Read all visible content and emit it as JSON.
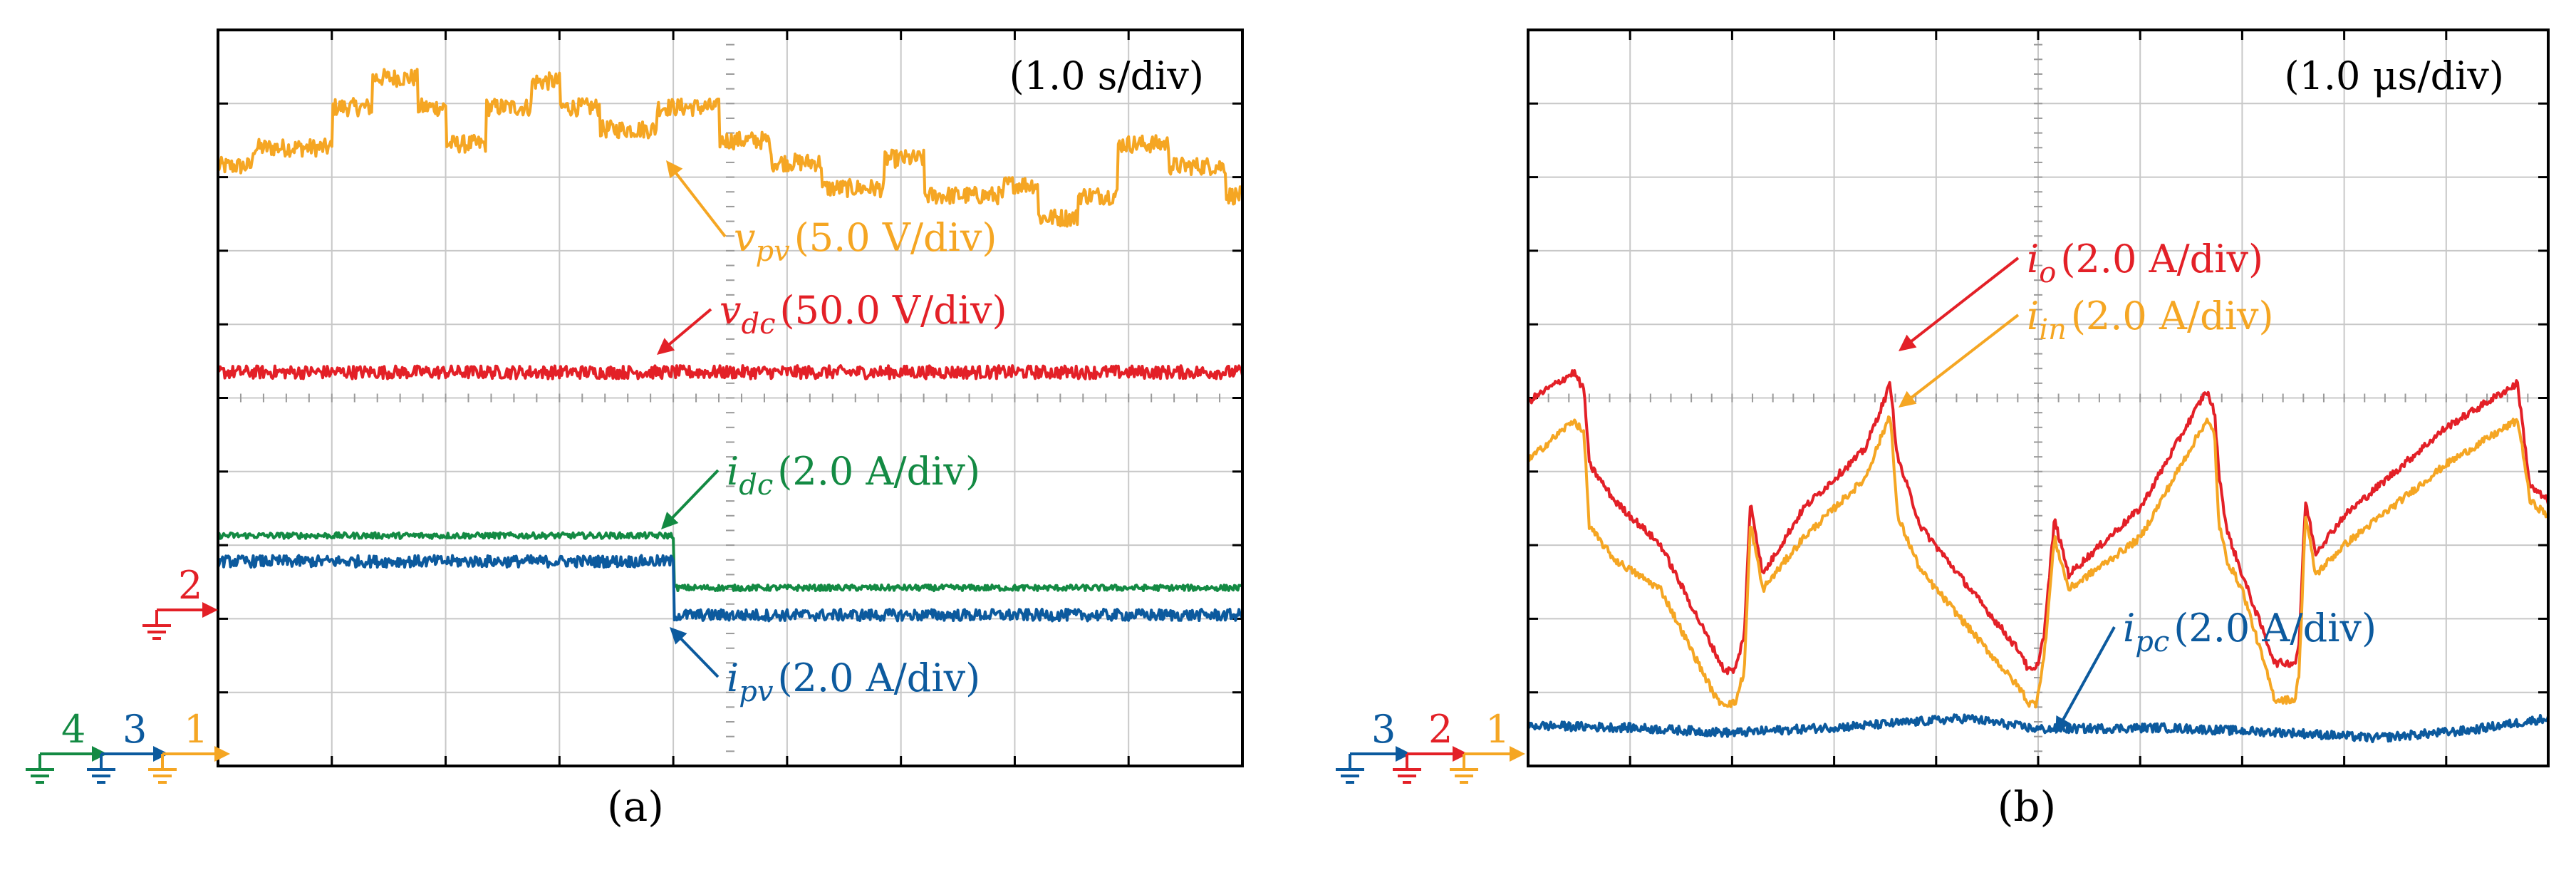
{
  "chart_data": [
    {
      "type": "line",
      "subplot_label": "(a)",
      "timebase": "(1.0 s/div)",
      "grid": true,
      "divisions": {
        "x": 9,
        "y": 10
      },
      "series": [
        {
          "name": "v_pv",
          "var": "v",
          "sub": "pv",
          "scale": "(5.0 V/div)",
          "color": "#f5a623",
          "channel": null,
          "x": [
            0,
            0.3,
            0.3,
            1.0,
            1.0,
            1.35,
            1.35,
            1.75,
            1.75,
            2.0,
            2.0,
            2.35,
            2.35,
            2.75,
            2.75,
            3.0,
            3.0,
            3.35,
            3.35,
            3.85,
            3.85,
            4.4,
            4.4,
            4.85,
            4.85,
            5.3,
            5.3,
            5.85,
            5.85,
            6.2,
            6.2,
            6.9,
            6.9,
            7.2,
            7.2,
            7.55,
            7.55,
            7.9,
            7.9,
            8.35,
            8.35,
            8.85,
            8.85,
            9.0
          ],
          "y": [
            8.15,
            8.15,
            8.4,
            8.4,
            8.95,
            8.95,
            9.35,
            9.35,
            8.95,
            8.95,
            8.45,
            8.45,
            8.95,
            8.95,
            9.3,
            9.3,
            8.95,
            8.95,
            8.65,
            8.65,
            8.95,
            8.95,
            8.5,
            8.5,
            8.2,
            8.2,
            7.85,
            7.85,
            8.25,
            8.25,
            7.75,
            7.75,
            7.9,
            7.9,
            7.45,
            7.45,
            7.75,
            7.75,
            8.45,
            8.45,
            8.15,
            8.15,
            7.75,
            7.75
          ],
          "noise": 0.12
        },
        {
          "name": "v_dc",
          "var": "v",
          "sub": "dc",
          "scale": "(50.0 V/div)",
          "color": "#e32027",
          "channel": "2",
          "x": [
            0,
            9
          ],
          "y": [
            5.35,
            5.35
          ],
          "noise": 0.09
        },
        {
          "name": "i_dc",
          "var": "i",
          "sub": "dc",
          "scale": "(2.0 A/div)",
          "color": "#138a43",
          "channel": "4",
          "x": [
            0,
            4.0,
            4.0,
            9.0
          ],
          "y": [
            3.13,
            3.13,
            2.42,
            2.42
          ],
          "noise": 0.04
        },
        {
          "name": "i_pv",
          "var": "i",
          "sub": "pv",
          "scale": "(2.0 A/div)",
          "color": "#0c5a9e",
          "channel": "3",
          "x": [
            0,
            4.0,
            4.0,
            9.0
          ],
          "y": [
            2.78,
            2.78,
            2.05,
            2.05
          ],
          "noise": 0.08
        }
      ],
      "channel_markers": [
        "4",
        "3",
        "1",
        "2"
      ]
    },
    {
      "type": "line",
      "subplot_label": "(b)",
      "timebase": "(1.0 μs/div)",
      "grid": true,
      "divisions": {
        "x": 10,
        "y": 10
      },
      "series": [
        {
          "name": "i_o",
          "var": "i",
          "sub": "o",
          "scale": "(2.0 A/div)",
          "color": "#e32027",
          "channel": "2",
          "x": [
            0,
            0.45,
            0.55,
            0.6,
            0.85,
            1.3,
            1.85,
            1.92,
            2.0,
            2.03,
            2.12,
            2.18,
            2.3,
            2.7,
            3.3,
            3.5,
            3.55,
            3.62,
            3.85,
            4.85,
            4.9,
            4.95,
            4.98,
            5.06,
            5.16,
            5.3,
            6.0,
            6.65,
            6.73,
            6.77,
            6.85,
            7.0,
            7.32,
            7.52,
            7.56,
            7.62,
            7.72,
            8.0,
            9.0,
            9.7,
            9.76,
            9.82,
            10.0
          ],
          "y": [
            4.95,
            5.35,
            5.1,
            4.1,
            3.6,
            3.0,
            1.5,
            1.3,
            1.3,
            1.3,
            1.8,
            3.6,
            2.6,
            3.5,
            4.3,
            5.0,
            5.2,
            4.2,
            3.25,
            1.5,
            1.3,
            1.3,
            1.3,
            1.8,
            3.35,
            2.6,
            3.5,
            5.1,
            4.8,
            4.0,
            3.2,
            2.6,
            1.4,
            1.4,
            1.7,
            3.6,
            2.9,
            3.4,
            4.6,
            5.2,
            4.5,
            3.8,
            3.6
          ],
          "noise": 0.05
        },
        {
          "name": "i_in",
          "var": "i",
          "sub": "in",
          "scale": "(2.0 A/div)",
          "color": "#f5a623",
          "channel": "1",
          "x": [
            0,
            0.45,
            0.55,
            0.6,
            0.85,
            1.3,
            1.85,
            1.92,
            2.0,
            2.03,
            2.12,
            2.18,
            2.3,
            2.7,
            3.3,
            3.5,
            3.55,
            3.62,
            3.85,
            4.85,
            4.9,
            4.95,
            4.98,
            5.06,
            5.16,
            5.3,
            6.0,
            6.65,
            6.73,
            6.77,
            6.85,
            7.0,
            7.32,
            7.52,
            7.56,
            7.62,
            7.72,
            8.0,
            9.0,
            9.7,
            9.76,
            9.82,
            10.0
          ],
          "y": [
            4.15,
            4.7,
            4.5,
            3.25,
            2.8,
            2.4,
            0.9,
            0.85,
            0.85,
            0.85,
            1.3,
            3.3,
            2.4,
            3.1,
            3.9,
            4.6,
            4.8,
            3.4,
            2.65,
            1.0,
            0.85,
            0.85,
            0.85,
            1.5,
            3.1,
            2.4,
            3.1,
            4.7,
            4.5,
            3.3,
            2.8,
            2.4,
            0.9,
            0.9,
            1.3,
            3.4,
            2.6,
            3.0,
            4.1,
            4.7,
            4.2,
            3.6,
            3.4
          ],
          "noise": 0.05
        },
        {
          "name": "i_pc",
          "var": "i",
          "sub": "pc",
          "scale": "(2.0 A/div)",
          "color": "#0c5a9e",
          "channel": "3",
          "x": [
            0,
            1.0,
            2.0,
            3.3,
            4.3,
            5.0,
            6.2,
            7.5,
            8.3,
            9.2,
            10.0
          ],
          "y": [
            0.55,
            0.52,
            0.45,
            0.55,
            0.65,
            0.5,
            0.52,
            0.45,
            0.38,
            0.48,
            0.65
          ],
          "noise": 0.06
        }
      ],
      "channel_markers": [
        "3",
        "2",
        "1"
      ]
    }
  ]
}
